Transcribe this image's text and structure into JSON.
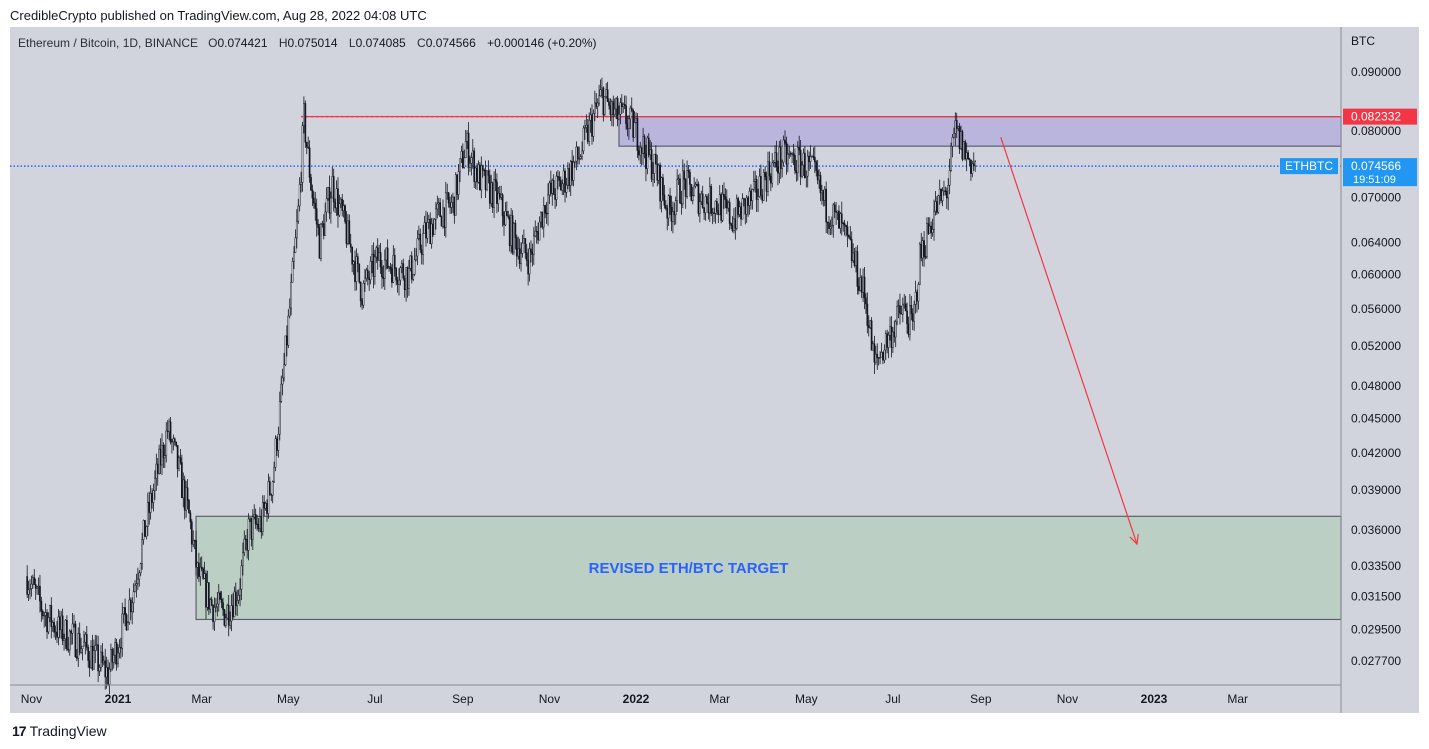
{
  "header": {
    "publisher": "CredibleCrypto published on TradingView.com, Aug 28, 2022 04:08 UTC"
  },
  "legend": {
    "symbol": "Ethereum / Bitcoin, 1D, BINANCE",
    "open_label": "O",
    "open": "0.074421",
    "high_label": "H",
    "high": "0.075014",
    "low_label": "L",
    "low": "0.074085",
    "close_label": "C",
    "close": "0.074566",
    "change": "+0.000146 (+0.20%)"
  },
  "footer": {
    "brand": "TradingView",
    "logo": "17"
  },
  "colors": {
    "panel_bg": "#d1d4dc",
    "candle": "#131722",
    "resistance_zone": "#b9b5dd",
    "target_zone": "#bccfc4",
    "red": "#f23645",
    "blue": "#2962ff",
    "price_tag": "#2196f3",
    "target_text": "#2962ff"
  },
  "chart_data": {
    "type": "candlestick",
    "symbol": "ETHBTC",
    "currency_label": "BTC",
    "scale": "log",
    "ylim": [
      0.0264,
      0.0985
    ],
    "y_ticks": [
      "0.090000",
      "0.080000",
      "0.070000",
      "0.064000",
      "0.060000",
      "0.056000",
      "0.052000",
      "0.048000",
      "0.045000",
      "0.042000",
      "0.039000",
      "0.036000",
      "0.033500",
      "0.031500",
      "0.029500",
      "0.027700"
    ],
    "x_ticks": [
      {
        "label": "Nov",
        "date": "2020-11-01",
        "bold": false
      },
      {
        "label": "2021",
        "date": "2021-01-01",
        "bold": true
      },
      {
        "label": "Mar",
        "date": "2021-03-01",
        "bold": false
      },
      {
        "label": "May",
        "date": "2021-05-01",
        "bold": false
      },
      {
        "label": "Jul",
        "date": "2021-07-01",
        "bold": false
      },
      {
        "label": "Sep",
        "date": "2021-09-01",
        "bold": false
      },
      {
        "label": "Nov",
        "date": "2021-11-01",
        "bold": false
      },
      {
        "label": "2022",
        "date": "2022-01-01",
        "bold": true
      },
      {
        "label": "Mar",
        "date": "2022-03-01",
        "bold": false
      },
      {
        "label": "May",
        "date": "2022-05-01",
        "bold": false
      },
      {
        "label": "Jul",
        "date": "2022-07-01",
        "bold": false
      },
      {
        "label": "Sep",
        "date": "2022-09-01",
        "bold": false
      },
      {
        "label": "Nov",
        "date": "2022-11-01",
        "bold": false
      },
      {
        "label": "2023",
        "date": "2023-01-01",
        "bold": true
      },
      {
        "label": "Mar",
        "date": "2023-03-01",
        "bold": false
      }
    ],
    "price_path": [
      [
        "2020-10-29",
        0.0328
      ],
      [
        "2020-11-10",
        0.0305
      ],
      [
        "2020-11-20",
        0.0295
      ],
      [
        "2020-12-01",
        0.029
      ],
      [
        "2020-12-12",
        0.0282
      ],
      [
        "2020-12-25",
        0.027
      ],
      [
        "2021-01-02",
        0.029
      ],
      [
        "2021-01-12",
        0.032
      ],
      [
        "2021-01-20",
        0.036
      ],
      [
        "2021-01-28",
        0.04
      ],
      [
        "2021-02-05",
        0.044
      ],
      [
        "2021-02-12",
        0.041
      ],
      [
        "2021-02-20",
        0.037
      ],
      [
        "2021-02-26",
        0.033
      ],
      [
        "2021-03-08",
        0.031
      ],
      [
        "2021-03-18",
        0.0305
      ],
      [
        "2021-03-27",
        0.032
      ],
      [
        "2021-04-03",
        0.036
      ],
      [
        "2021-04-12",
        0.0365
      ],
      [
        "2021-04-20",
        0.04
      ],
      [
        "2021-04-26",
        0.047
      ],
      [
        "2021-05-02",
        0.056
      ],
      [
        "2021-05-08",
        0.068
      ],
      [
        "2021-05-12",
        0.082
      ],
      [
        "2021-05-17",
        0.072
      ],
      [
        "2021-05-23",
        0.064
      ],
      [
        "2021-06-01",
        0.072
      ],
      [
        "2021-06-10",
        0.066
      ],
      [
        "2021-06-22",
        0.058
      ],
      [
        "2021-07-03",
        0.062
      ],
      [
        "2021-07-15",
        0.061
      ],
      [
        "2021-07-25",
        0.06
      ],
      [
        "2021-08-05",
        0.065
      ],
      [
        "2021-08-16",
        0.068
      ],
      [
        "2021-08-25",
        0.069
      ],
      [
        "2021-09-03",
        0.078
      ],
      [
        "2021-09-12",
        0.073
      ],
      [
        "2021-09-25",
        0.07
      ],
      [
        "2021-10-08",
        0.064
      ],
      [
        "2021-10-18",
        0.062
      ],
      [
        "2021-10-30",
        0.07
      ],
      [
        "2021-11-10",
        0.072
      ],
      [
        "2021-11-22",
        0.076
      ],
      [
        "2021-11-30",
        0.081
      ],
      [
        "2021-12-08",
        0.086
      ],
      [
        "2021-12-15",
        0.083
      ],
      [
        "2021-12-25",
        0.082
      ],
      [
        "2022-01-01",
        0.08
      ],
      [
        "2022-01-07",
        0.077
      ],
      [
        "2022-01-15",
        0.074
      ],
      [
        "2022-01-24",
        0.068
      ],
      [
        "2022-02-03",
        0.072
      ],
      [
        "2022-02-15",
        0.07
      ],
      [
        "2022-03-01",
        0.069
      ],
      [
        "2022-03-10",
        0.067
      ],
      [
        "2022-03-25",
        0.07
      ],
      [
        "2022-04-05",
        0.074
      ],
      [
        "2022-04-15",
        0.076
      ],
      [
        "2022-04-28",
        0.075
      ],
      [
        "2022-05-05",
        0.074
      ],
      [
        "2022-05-14",
        0.069
      ],
      [
        "2022-05-25",
        0.066
      ],
      [
        "2022-06-03",
        0.062
      ],
      [
        "2022-06-12",
        0.057
      ],
      [
        "2022-06-18",
        0.05
      ],
      [
        "2022-06-28",
        0.053
      ],
      [
        "2022-07-08",
        0.056
      ],
      [
        "2022-07-15",
        0.054
      ],
      [
        "2022-07-20",
        0.062
      ],
      [
        "2022-07-30",
        0.068
      ],
      [
        "2022-08-08",
        0.071
      ],
      [
        "2022-08-14",
        0.08
      ],
      [
        "2022-08-22",
        0.076
      ],
      [
        "2022-08-28",
        0.0746
      ]
    ],
    "levels": [
      {
        "name": "resistance-top",
        "value": 0.08233,
        "color": "#f23645",
        "style": "solid",
        "from": "2021-05-10",
        "to": "axis"
      },
      {
        "name": "resistance-dotted",
        "value": 0.08233,
        "color": "#f23645",
        "style": "dotted",
        "from": "2021-05-10",
        "to": "2022-01-01"
      },
      {
        "name": "current-price",
        "value": 0.074566,
        "color": "#2962ff",
        "style": "dotted",
        "from": "start",
        "to": "axis"
      }
    ],
    "zones": [
      {
        "name": "resistance-zone",
        "from": "2021-12-20",
        "to": "axis",
        "low": 0.0776,
        "high": 0.08233,
        "color": "#b9b5dd"
      },
      {
        "name": "target-zone",
        "from": "2021-02-25",
        "to": "axis",
        "low": 0.0301,
        "high": 0.037,
        "color": "#bccfc4",
        "label": "REVISED ETH/BTC TARGET"
      }
    ],
    "arrow": {
      "from": {
        "date": "2022-09-15",
        "value": 0.079
      },
      "to": {
        "date": "2022-12-20",
        "value": 0.035
      },
      "color": "#f23645"
    },
    "price_labels": [
      {
        "name": "resistance-price-tag",
        "value": "0.082332",
        "price": 0.08233,
        "color": "#f23645"
      },
      {
        "name": "current-price-tag",
        "value": "0.074566",
        "countdown": "19:51:09",
        "price": 0.074566,
        "color": "#2196f3"
      }
    ],
    "symbol_tag": "ETHBTC"
  }
}
